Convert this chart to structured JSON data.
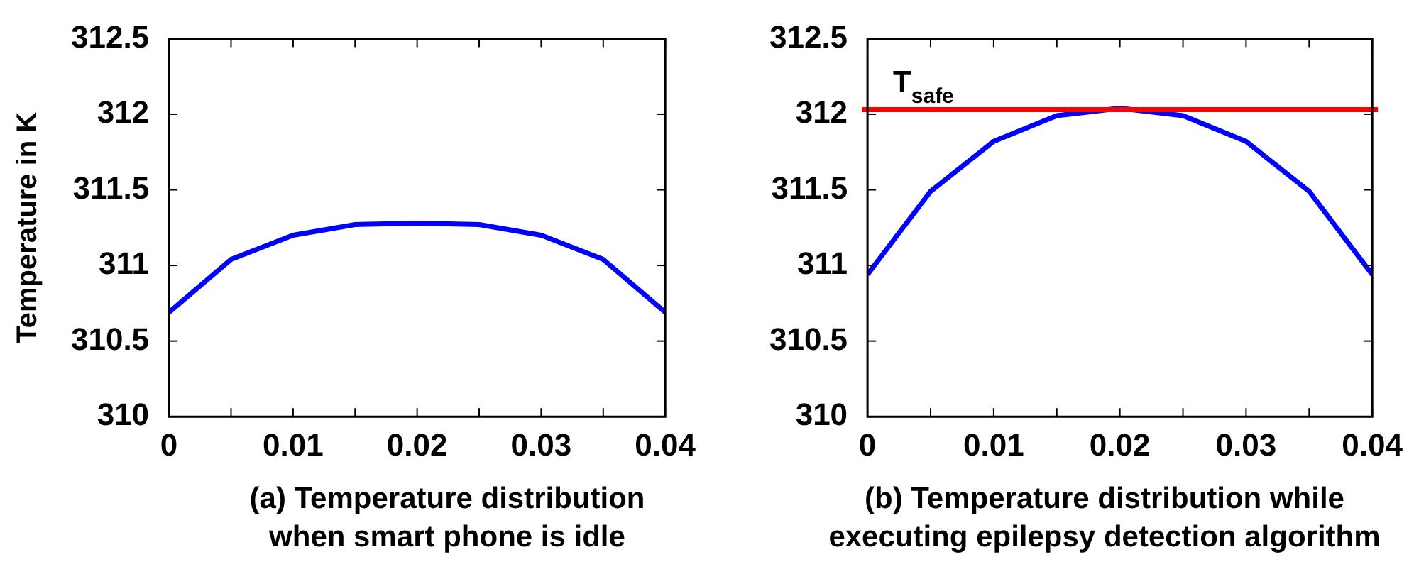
{
  "chart_data": [
    {
      "type": "line",
      "xlabel": "(a) Temperature distribution when smart phone is idle",
      "ylabel": "Temperature in K",
      "x": [
        0,
        0.005,
        0.01,
        0.015,
        0.02,
        0.025,
        0.03,
        0.035,
        0.04
      ],
      "series": [
        {
          "color": "#0000ff",
          "values": [
            310.69,
            311.04,
            311.2,
            311.27,
            311.28,
            311.27,
            311.2,
            311.04,
            310.69
          ]
        }
      ],
      "xlim": [
        0,
        0.04
      ],
      "xticks": [
        0,
        {
          "value": 0.005,
          "label": null
        },
        0.01,
        {
          "value": 0.015,
          "label": null
        },
        0.02,
        {
          "value": 0.025,
          "label": null
        },
        0.03,
        {
          "value": 0.035,
          "label": null
        },
        0.04
      ],
      "ylim": [
        310,
        312.5
      ],
      "yticks": [
        310,
        310.5,
        311,
        311.5,
        312,
        312.5
      ],
      "grid": false,
      "legend": false,
      "marker": "none",
      "line_style": "solid"
    },
    {
      "type": "line",
      "xlabel": "(b) Temperature distribution while executing epilepsy detection algorithm",
      "x": [
        0,
        0.005,
        0.01,
        0.015,
        0.02,
        0.025,
        0.03,
        0.035,
        0.04
      ],
      "series": [
        {
          "color": "#0000ff",
          "values": [
            310.94,
            311.49,
            311.82,
            311.99,
            312.04,
            311.99,
            311.82,
            311.49,
            310.94
          ]
        }
      ],
      "xlim": [
        0,
        0.04
      ],
      "xticks": [
        0,
        {
          "value": 0.005,
          "label": null
        },
        0.01,
        {
          "value": 0.015,
          "label": null
        },
        0.02,
        {
          "value": 0.025,
          "label": null
        },
        0.03,
        {
          "value": 0.035,
          "label": null
        },
        0.04
      ],
      "ylim": [
        310,
        312.5
      ],
      "yticks": [
        310,
        310.5,
        311,
        311.5,
        312,
        312.5
      ],
      "grid": false,
      "legend": false,
      "marker": "none",
      "line_style": "solid",
      "ref_lines": [
        {
          "axis": "y",
          "value": 312.03,
          "label": "T$_{safe}$",
          "color": "#ff0000"
        }
      ]
    }
  ]
}
